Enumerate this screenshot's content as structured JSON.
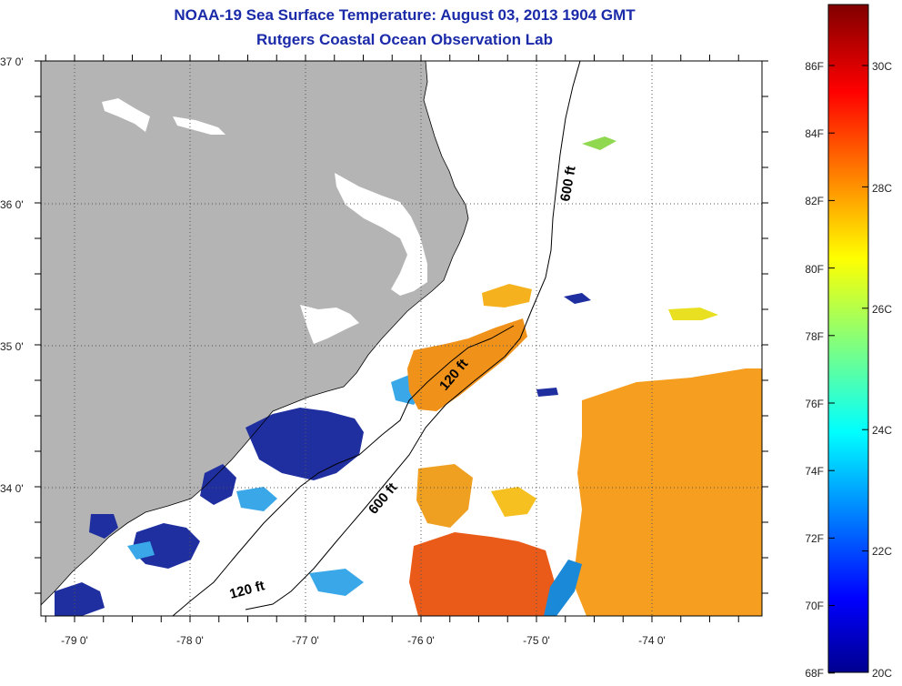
{
  "title": {
    "line1": "NOAA-19 Sea Surface Temperature:  August 03, 2013 1904 GMT",
    "line2": "Rutgers Coastal Ocean Observation Lab"
  },
  "map": {
    "lat_labels": [
      "37 0'",
      "36 0'",
      "35 0'",
      "34 0'"
    ],
    "lon_labels": [
      "-79 0'",
      "-78 0'",
      "-77 0'",
      "-76 0'",
      "-75 0'",
      "-74 0'"
    ],
    "contour_labels": [
      "600 ft",
      "120 ft",
      "600 ft",
      "120 ft"
    ],
    "colors": {
      "land": "#b4b4b4",
      "ocean_no_data": "#ffffff",
      "frame": "#000000"
    }
  },
  "colorbar": {
    "fahrenheit_labels": [
      "86F",
      "84F",
      "82F",
      "80F",
      "78F",
      "76F",
      "74F",
      "72F",
      "70F",
      "68F"
    ],
    "celsius_labels": [
      "30C",
      "28C",
      "26C",
      "24C",
      "22C",
      "20C"
    ],
    "colormap": "jet",
    "range_f": [
      68,
      88
    ]
  }
}
